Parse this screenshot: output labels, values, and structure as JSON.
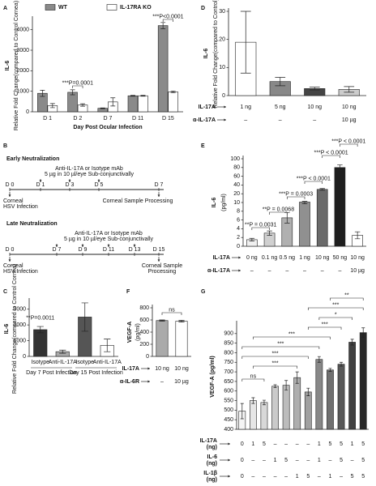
{
  "chart_data": [
    {
      "type": "bar",
      "panel": "A",
      "ylabel": "IL-6",
      "ylabel2": "Relative Fold Change(compared to Control Cornea)",
      "xlabel": "Day Post Ocular Infection",
      "categories": [
        "D 1",
        "D 2",
        "D 7",
        "D 11",
        "D 15"
      ],
      "series": [
        {
          "name": "WT",
          "color": "#8a8a8a",
          "values": [
            900,
            950,
            170,
            780,
            4200
          ],
          "errors": [
            150,
            120,
            20,
            20,
            150
          ]
        },
        {
          "name": "IL-17RA KO",
          "color": "#ffffff",
          "values": [
            300,
            330,
            480,
            780,
            970
          ],
          "errors": [
            100,
            60,
            200,
            20,
            40
          ]
        }
      ],
      "ylim": [
        0,
        4500
      ],
      "yticks": [
        0,
        1000,
        2000,
        3000,
        4000
      ],
      "annotations": [
        "***P=0.0001",
        "***P<0.0001"
      ]
    },
    {
      "type": "bar",
      "panel": "D",
      "ylabel": "IL-6",
      "ylabel2": "Relative Fold Change(compared to Control)",
      "values": [
        19,
        5,
        2.5,
        2.2
      ],
      "errors": [
        11,
        1.5,
        0.5,
        1
      ],
      "colors": [
        "#ffffff",
        "#888888",
        "#444444",
        "#cccccc"
      ],
      "ylim": [
        0,
        30
      ],
      "yticks": [
        0,
        10,
        20,
        30
      ],
      "rows": [
        {
          "label": "IL-17A",
          "values": [
            "1 ng",
            "5 ng",
            "10 ng",
            "10 ng"
          ]
        },
        {
          "label": "α-IL-17A",
          "values": [
            "–",
            "–",
            "–",
            "10 µg"
          ]
        }
      ]
    },
    {
      "type": "bar",
      "panel": "E",
      "ylabel": "IL-6",
      "ylabel2": "(pg/ml)",
      "yscale": "segmented",
      "values": [
        1.5,
        3,
        6.5,
        10.5,
        30,
        80,
        2.5
      ],
      "errors": [
        0.3,
        0.5,
        1.2,
        0.8,
        2,
        6,
        0.8
      ],
      "colors": [
        "#f0f0f0",
        "#d0d0d0",
        "#b0b0b0",
        "#909090",
        "#6a6a6a",
        "#1e1e1e",
        "#ffffff"
      ],
      "ylim": [
        0,
        100
      ],
      "yticks": [
        0,
        2,
        4,
        6,
        8,
        10,
        20,
        40,
        60,
        80,
        100
      ],
      "rows": [
        {
          "label": "IL-17A",
          "values": [
            "0 ng",
            "0.1 ng",
            "0.5 ng",
            "1 ng",
            "10 ng",
            "50 ng",
            "10 ng"
          ]
        },
        {
          "label": "α-IL-17A",
          "values": [
            "–",
            "–",
            "–",
            "–",
            "–",
            "–",
            "10 µg"
          ]
        }
      ],
      "annotations": [
        "**P = 0.0031",
        "**P = 0.0068",
        "***P = 0.0003",
        "***P < 0.0001",
        "***P < 0.0001",
        "***P < 0.0001"
      ]
    },
    {
      "type": "bar",
      "panel": "C",
      "ylabel": "IL-6",
      "ylabel2": "Relative Fold Change(compared to Control Cornea)",
      "categories": [
        "Isotype",
        "Anti-IL-17A",
        "Isotype",
        "Anti-IL-17A"
      ],
      "groups": [
        "Day 7 Post Infection",
        "Day 15 Post Infection"
      ],
      "values": [
        1700,
        300,
        2500,
        700
      ],
      "errors": [
        200,
        100,
        900,
        400
      ],
      "colors": [
        "#333333",
        "#aaaaaa",
        "#555555",
        "#ffffff"
      ],
      "ylim": [
        0,
        3500
      ],
      "yticks": [
        0,
        1000,
        2000,
        3000
      ],
      "annotations": [
        "**P=0.0011"
      ]
    },
    {
      "type": "bar",
      "panel": "F",
      "ylabel": "VEGF-A",
      "ylabel2": "(pg/ml)",
      "values": [
        590,
        580
      ],
      "errors": [
        10,
        15
      ],
      "colors": [
        "#aaaaaa",
        "#ffffff"
      ],
      "ylim": [
        0,
        800
      ],
      "yticks": [
        0,
        200,
        400,
        600,
        800
      ],
      "rows": [
        {
          "label": "IL-17A",
          "values": [
            "10 ng",
            "10 ng"
          ]
        },
        {
          "label": "α-IL-6R",
          "values": [
            "–",
            "10 µg"
          ]
        }
      ],
      "annotations": [
        "ns"
      ]
    },
    {
      "type": "bar",
      "panel": "G",
      "ylabel": "VEGF-A (pg/ml)",
      "values": [
        495,
        550,
        540,
        625,
        630,
        670,
        595,
        765,
        710,
        740,
        855,
        905
      ],
      "errors": [
        40,
        15,
        12,
        8,
        25,
        30,
        20,
        15,
        8,
        10,
        15,
        25
      ],
      "colors": [
        "#f4f4f4",
        "#e6e6e6",
        "#d8d8d8",
        "#cacaca",
        "#bcbcbc",
        "#aeaeae",
        "#a0a0a0",
        "#888888",
        "#707070",
        "#585858",
        "#404040",
        "#282828"
      ],
      "ylim": [
        400,
        950
      ],
      "yticks": [
        400,
        450,
        500,
        550,
        600,
        650,
        700,
        750,
        800,
        850,
        900
      ],
      "rows": [
        {
          "label": [
            "IL-17A",
            "(ng)"
          ],
          "values": [
            "0",
            "1",
            "5",
            "–",
            "–",
            "–",
            "–",
            "1",
            "5",
            "5",
            "1",
            "5"
          ]
        },
        {
          "label": [
            "IL-6",
            "(ng)"
          ],
          "values": [
            "0",
            "–",
            "–",
            "1",
            "5",
            "–",
            "–",
            "1",
            "–",
            "5",
            "–",
            "5"
          ]
        },
        {
          "label": [
            "IL-1β",
            "(ng)"
          ],
          "values": [
            "0",
            "–",
            "–",
            "–",
            "–",
            "1",
            "5",
            "–",
            "1",
            "–",
            "5",
            "5"
          ]
        }
      ],
      "annotations": [
        "ns",
        "***",
        "***",
        "***",
        "***",
        "***",
        "*",
        "***",
        "**"
      ]
    }
  ],
  "diagram": {
    "panel": "B",
    "early": {
      "title": "Early Neutralization",
      "treatment": [
        "Anti-IL-17A or Isotype mAb",
        "5 µg in 10 µl/eye Sub-conjunctivally"
      ],
      "days": [
        "D 0",
        "D 1",
        "D 3",
        "D 5",
        "D 7"
      ],
      "start": [
        "Corneal",
        "HSV Infection"
      ],
      "end": [
        "Corneal Sample Processing"
      ]
    },
    "late": {
      "title": "Late Neutralization",
      "treatment": [
        "Anti-IL-17A or Isotype mAb",
        "5 µg in 10 µl/eye Sub-conjunctivally"
      ],
      "days": [
        "D 0",
        "D 7",
        "D 9",
        "D 11",
        "D 13",
        "D 15"
      ],
      "start": [
        "Corneal",
        "HSV Infection"
      ],
      "end": [
        "Corneal Sample",
        "Processing"
      ]
    }
  }
}
